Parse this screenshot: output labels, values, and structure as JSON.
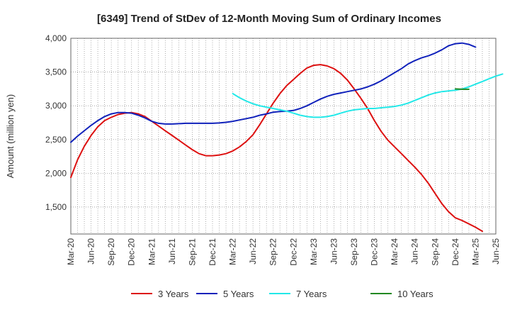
{
  "chart_data": {
    "type": "line",
    "title": "[6349]  Trend of StDev of 12-Month Moving Sum of Ordinary Incomes",
    "xlabel": "",
    "ylabel": "Amount (million yen)",
    "ylim": [
      1100,
      4000
    ],
    "yticks": [
      1500,
      2000,
      2500,
      3000,
      3500,
      4000
    ],
    "ytick_labels": [
      "1,500",
      "2,000",
      "2,500",
      "3,000",
      "3,500",
      "4,000"
    ],
    "xticks": [
      "Mar-20",
      "Jun-20",
      "Sep-20",
      "Dec-20",
      "Mar-21",
      "Jun-21",
      "Sep-21",
      "Dec-21",
      "Mar-22",
      "Jun-22",
      "Sep-22",
      "Dec-22",
      "Mar-23",
      "Jun-23",
      "Sep-23",
      "Dec-23",
      "Mar-24",
      "Jun-24",
      "Sep-24",
      "Dec-24",
      "Mar-25",
      "Jun-25"
    ],
    "grid": true,
    "legend_position": "bottom",
    "series": [
      {
        "name": "3 Years",
        "color": "#dd1111",
        "start_index": 0,
        "values": [
          1940,
          2200,
          2400,
          2560,
          2690,
          2780,
          2830,
          2870,
          2890,
          2900,
          2880,
          2840,
          2770,
          2700,
          2630,
          2560,
          2490,
          2420,
          2350,
          2290,
          2260,
          2260,
          2270,
          2290,
          2330,
          2390,
          2470,
          2570,
          2720,
          2880,
          3040,
          3180,
          3300,
          3390,
          3480,
          3560,
          3600,
          3610,
          3590,
          3550,
          3480,
          3380,
          3250,
          3110,
          2960,
          2780,
          2620,
          2490,
          2390,
          2290,
          2190,
          2090,
          1980,
          1850,
          1700,
          1550,
          1430,
          1340,
          1300,
          1250,
          1200,
          1140
        ]
      },
      {
        "name": "5 Years",
        "color": "#1122bb",
        "start_index": 0,
        "values": [
          2460,
          2550,
          2630,
          2710,
          2780,
          2840,
          2880,
          2900,
          2900,
          2890,
          2860,
          2820,
          2770,
          2740,
          2730,
          2730,
          2735,
          2740,
          2740,
          2740,
          2740,
          2740,
          2745,
          2755,
          2770,
          2790,
          2810,
          2830,
          2860,
          2880,
          2905,
          2915,
          2920,
          2930,
          2960,
          3000,
          3050,
          3100,
          3140,
          3170,
          3190,
          3210,
          3230,
          3250,
          3280,
          3320,
          3370,
          3430,
          3490,
          3550,
          3620,
          3670,
          3710,
          3740,
          3780,
          3830,
          3890,
          3920,
          3930,
          3910,
          3870
        ]
      },
      {
        "name": "7 Years",
        "color": "#22e8e8",
        "start_index": 24,
        "values": [
          3180,
          3120,
          3070,
          3030,
          3000,
          2980,
          2960,
          2940,
          2920,
          2890,
          2860,
          2840,
          2830,
          2830,
          2840,
          2860,
          2890,
          2920,
          2940,
          2950,
          2960,
          2960,
          2970,
          2980,
          2990,
          3010,
          3040,
          3080,
          3120,
          3160,
          3190,
          3210,
          3220,
          3230,
          3250,
          3280,
          3320,
          3360,
          3400,
          3440,
          3470
        ]
      },
      {
        "name": "10 Years",
        "color": "#228822",
        "start_index": 57,
        "values": [
          3250,
          3245,
          3245
        ]
      }
    ]
  }
}
